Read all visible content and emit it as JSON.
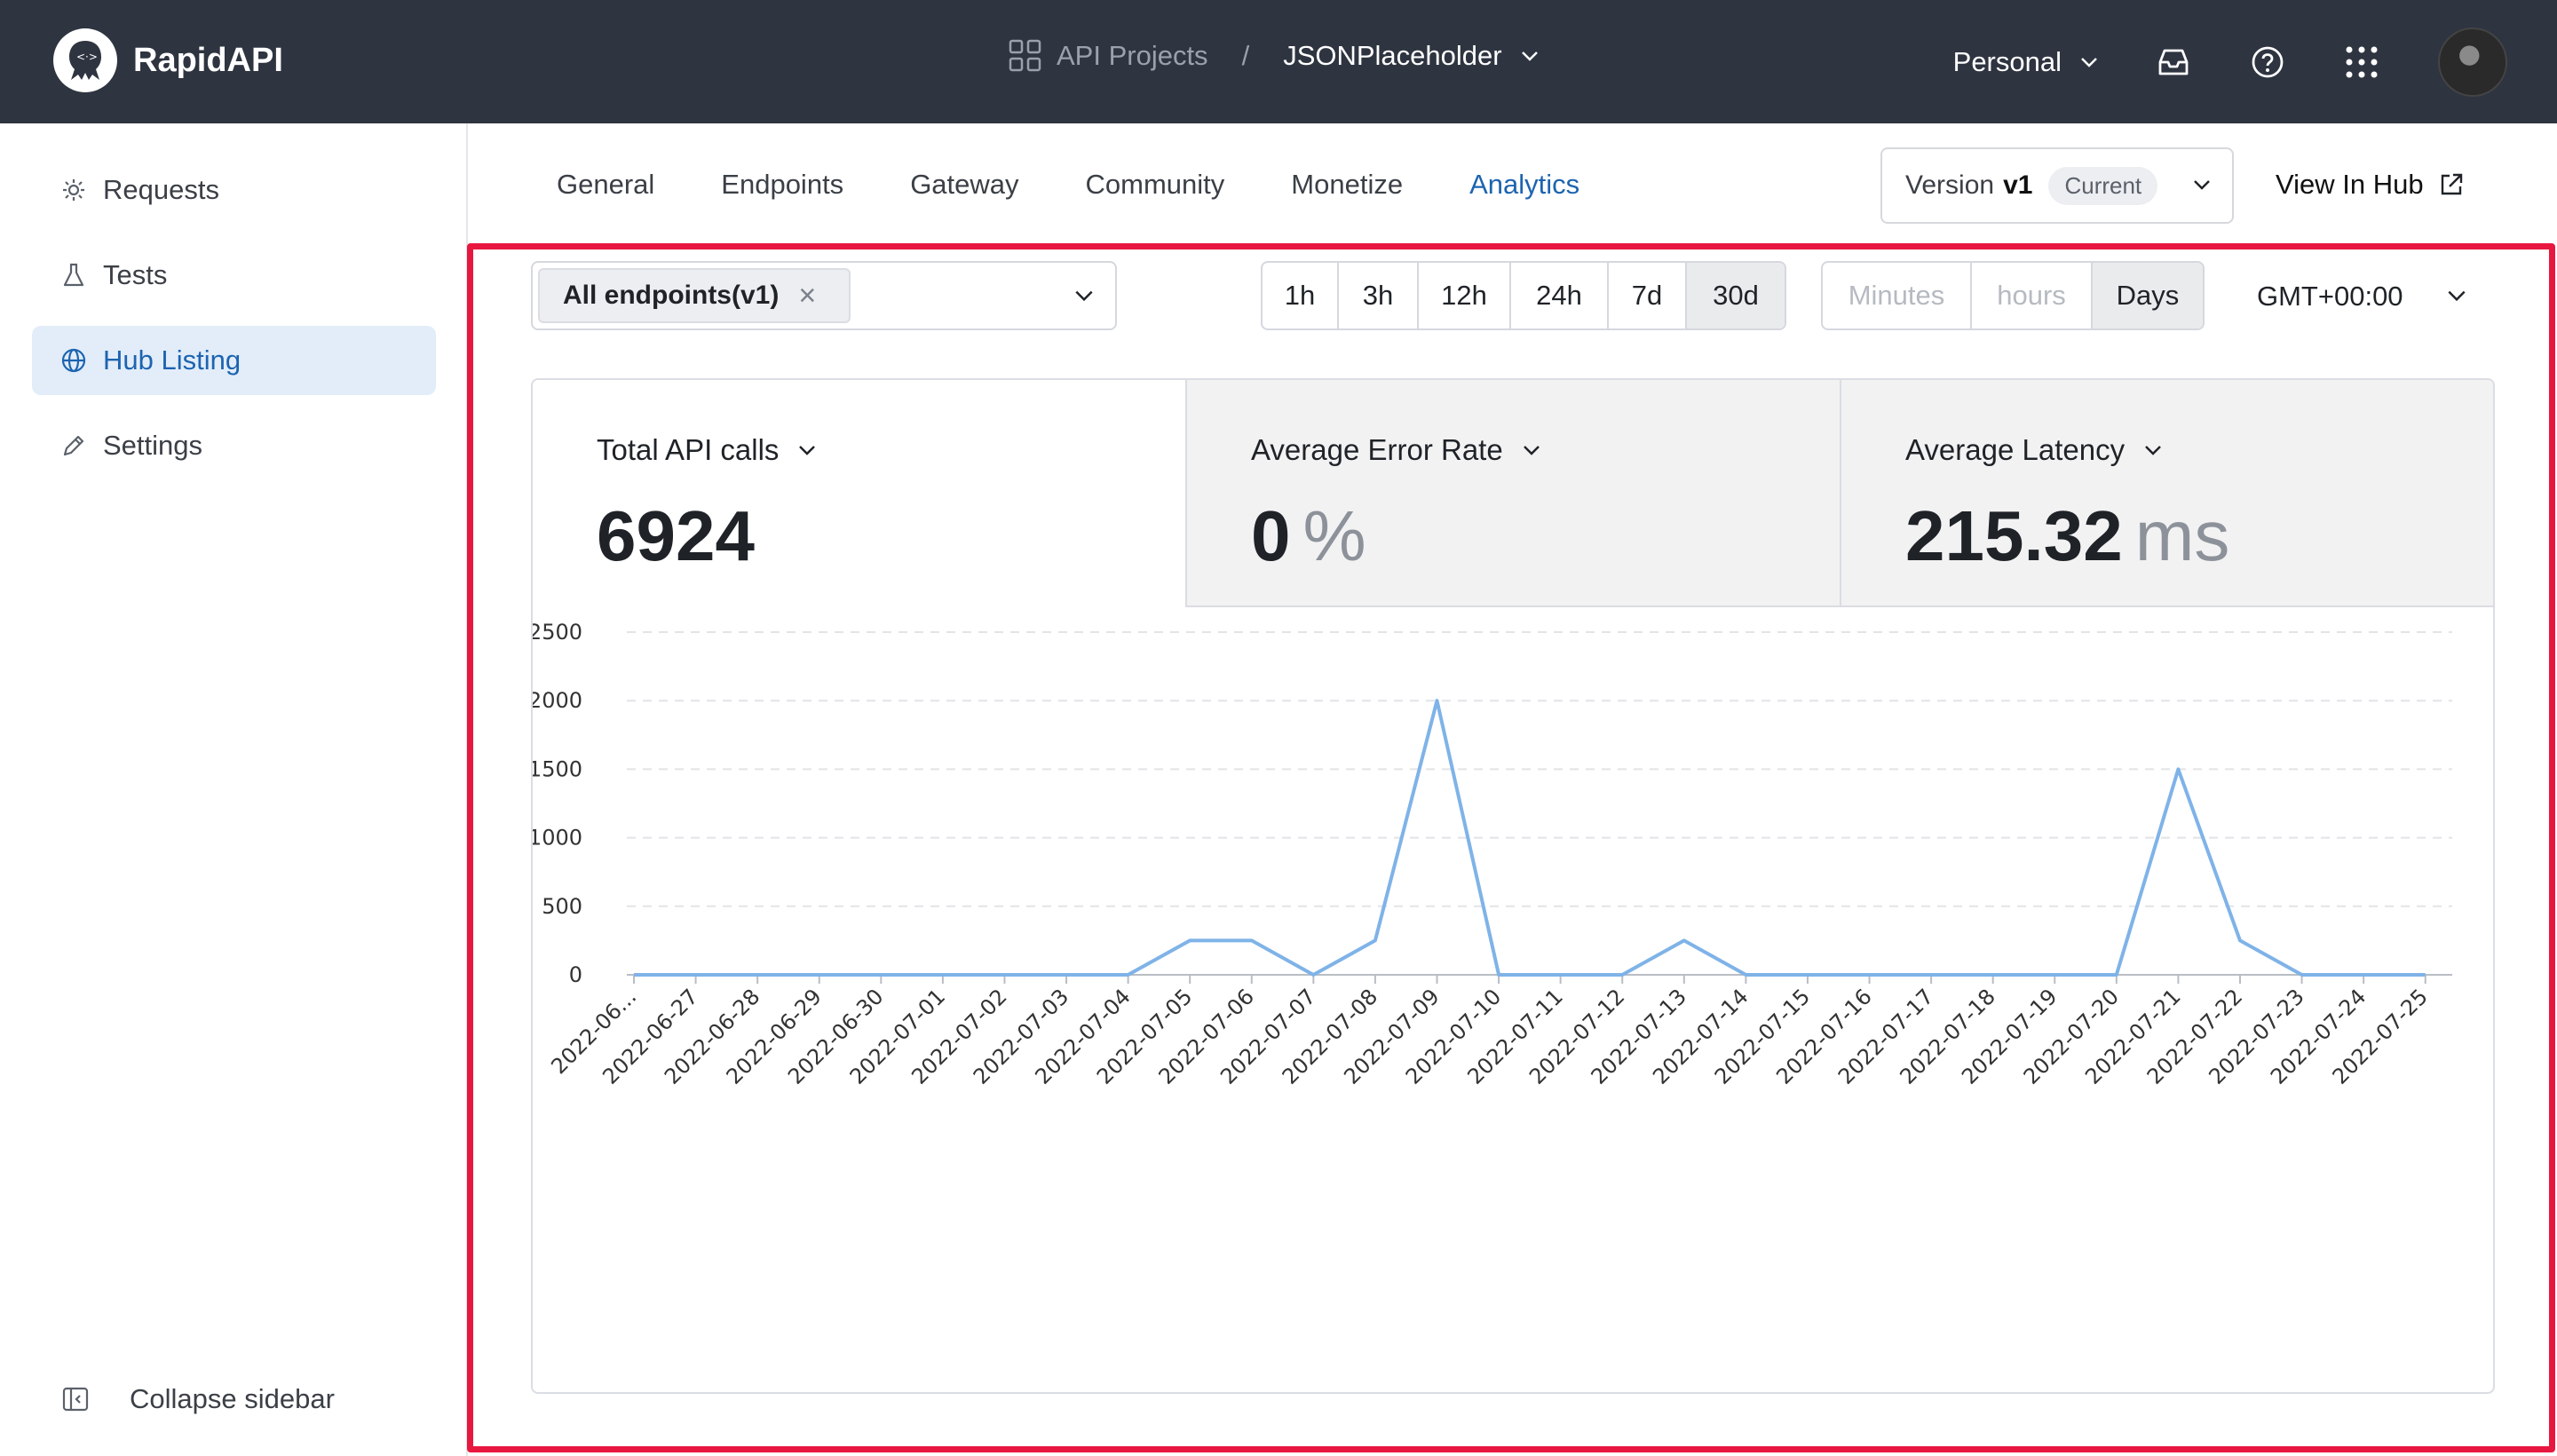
{
  "brand": {
    "name": "RapidAPI"
  },
  "breadcrumb": {
    "projects": "API Projects",
    "separator": "/",
    "current": "JSONPlaceholder"
  },
  "workspace": {
    "label": "Personal"
  },
  "sidebar": {
    "items": [
      {
        "label": "Requests"
      },
      {
        "label": "Tests"
      },
      {
        "label": "Hub Listing"
      },
      {
        "label": "Settings"
      }
    ],
    "collapse_label": "Collapse sidebar"
  },
  "tabs": [
    {
      "label": "General"
    },
    {
      "label": "Endpoints"
    },
    {
      "label": "Gateway"
    },
    {
      "label": "Community"
    },
    {
      "label": "Monetize"
    },
    {
      "label": "Analytics"
    }
  ],
  "version": {
    "prefix": "Version",
    "value": "v1",
    "badge": "Current"
  },
  "view_in_hub": "View In Hub",
  "filters": {
    "endpoint_chip": "All endpoints(v1)",
    "ranges": [
      "1h",
      "3h",
      "12h",
      "24h",
      "7d",
      "30d"
    ],
    "selected_range": "30d",
    "granularity": [
      "Minutes",
      "hours",
      "Days"
    ],
    "selected_granularity": "Days",
    "timezone": "GMT+00:00"
  },
  "stats": {
    "total_calls": {
      "label": "Total API calls",
      "value": "6924"
    },
    "error_rate": {
      "label": "Average Error Rate",
      "value": "0",
      "unit": "%"
    },
    "latency": {
      "label": "Average Latency",
      "value": "215.32",
      "unit": "ms"
    }
  },
  "colors": {
    "accent": "#1d64b0",
    "line": "#7fb3e8",
    "highlight": "#e8173f",
    "topbar": "#2e3440"
  },
  "chart_data": {
    "type": "line",
    "x": [
      "2022-06...",
      "2022-06-27",
      "2022-06-28",
      "2022-06-29",
      "2022-06-30",
      "2022-07-01",
      "2022-07-02",
      "2022-07-03",
      "2022-07-04",
      "2022-07-05",
      "2022-07-06",
      "2022-07-07",
      "2022-07-08",
      "2022-07-09",
      "2022-07-10",
      "2022-07-11",
      "2022-07-12",
      "2022-07-13",
      "2022-07-14",
      "2022-07-15",
      "2022-07-16",
      "2022-07-17",
      "2022-07-18",
      "2022-07-19",
      "2022-07-20",
      "2022-07-21",
      "2022-07-22",
      "2022-07-23",
      "2022-07-24",
      "2022-07-25"
    ],
    "series": [
      {
        "values": [
          0,
          0,
          0,
          0,
          0,
          0,
          0,
          0,
          0,
          250,
          250,
          0,
          250,
          2000,
          0,
          0,
          0,
          250,
          0,
          0,
          0,
          0,
          0,
          0,
          0,
          1500,
          250,
          0,
          0,
          0
        ]
      }
    ],
    "yticks": [
      "2500",
      "2000",
      "1500",
      "1000",
      "500",
      "0"
    ],
    "ylim": [
      0,
      2500
    ],
    "grid": true
  }
}
